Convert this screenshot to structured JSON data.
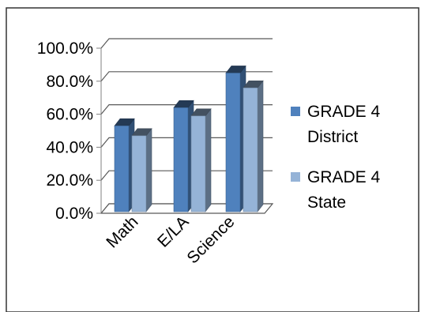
{
  "chart_data": {
    "type": "bar",
    "categories": [
      "Math",
      "E/LA",
      "Science"
    ],
    "series": [
      {
        "name": "GRADE 4 District",
        "legend_lines": [
          "GRADE 4",
          "District"
        ],
        "values": [
          52,
          63,
          84
        ],
        "color": "#4F81BD"
      },
      {
        "name": "GRADE 4 State",
        "legend_lines": [
          "GRADE 4",
          "State"
        ],
        "values": [
          46,
          58,
          75
        ],
        "color": "#95B3D7"
      }
    ],
    "y_ticks": [
      "0.0%",
      "20.0%",
      "40.0%",
      "60.0%",
      "80.0%",
      "100.0%"
    ],
    "ylim": [
      0,
      100
    ],
    "grid": true,
    "legend_position": "right",
    "style": "3d-clustered-column"
  },
  "colors": {
    "frame": "#333333",
    "axis": "#808080",
    "gridline": "#595959"
  }
}
